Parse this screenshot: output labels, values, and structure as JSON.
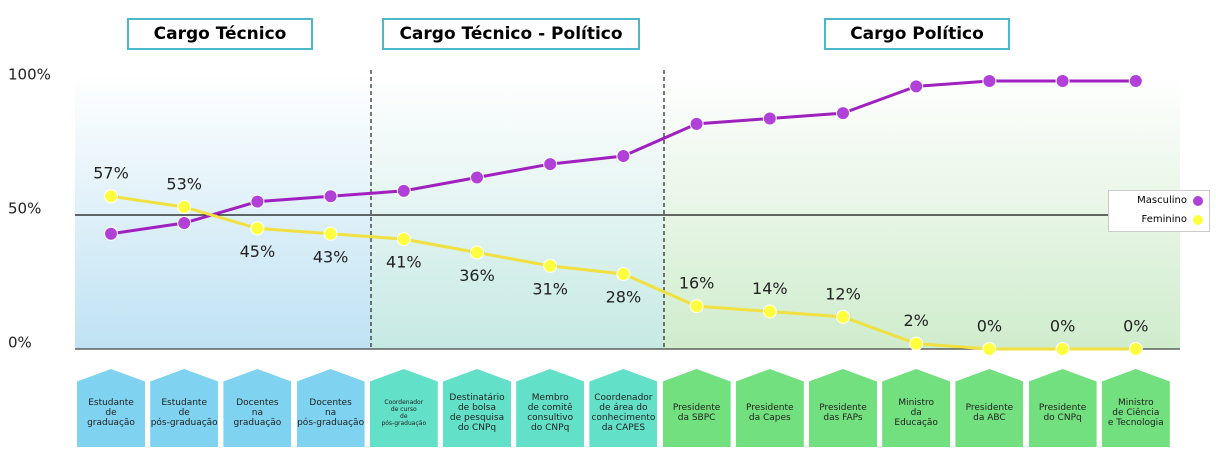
{
  "chart_data": {
    "type": "line",
    "sections": [
      "Cargo Técnico",
      "Cargo Técnico - Político",
      "Cargo Político"
    ],
    "categories": [
      "Estudante\nde\ngraduação",
      "Estudante\nde\npós-graduação",
      "Docentes\nna\ngraduação",
      "Docentes\nna\npós-graduação",
      "Coordenador\nde curso\nde\npós-graduação",
      "Destinatário\nde bolsa\nde pesquisa\ndo CNPq",
      "Membro\nde comitê\nconsultivo\ndo CNPq",
      "Coordenador\nde área do\nconhecimento\nda CAPES",
      "Presidente\nda SBPC",
      "Presidente\nda Capes",
      "Presidente\ndas FAPs",
      "Ministro\nda\nEducação",
      "Presidente\nda ABC",
      "Presidente\ndo CNPq",
      "Ministro\nde Ciência\ne Tecnologia"
    ],
    "series": [
      {
        "name": "Masculino",
        "color": "#a020c0",
        "values": [
          43,
          47,
          55,
          57,
          59,
          64,
          69,
          72,
          84,
          86,
          88,
          98,
          100,
          100,
          100
        ]
      },
      {
        "name": "Feminino",
        "color": "#f0e040",
        "values": [
          57,
          53,
          45,
          43,
          41,
          36,
          31,
          28,
          16,
          14,
          12,
          2,
          0,
          0,
          0
        ],
        "value_labels": [
          "57%",
          "53%",
          "45%",
          "43%",
          "41%",
          "36%",
          "31%",
          "28%",
          "16%",
          "14%",
          "12%",
          "2%",
          "0%",
          "0%",
          "0%"
        ]
      }
    ],
    "ylim": [
      0,
      100
    ],
    "yticks": [
      {
        "value": 0,
        "label": "0%"
      },
      {
        "value": 50,
        "label": "50%"
      },
      {
        "value": 100,
        "label": "100%"
      }
    ],
    "legend": "right"
  }
}
